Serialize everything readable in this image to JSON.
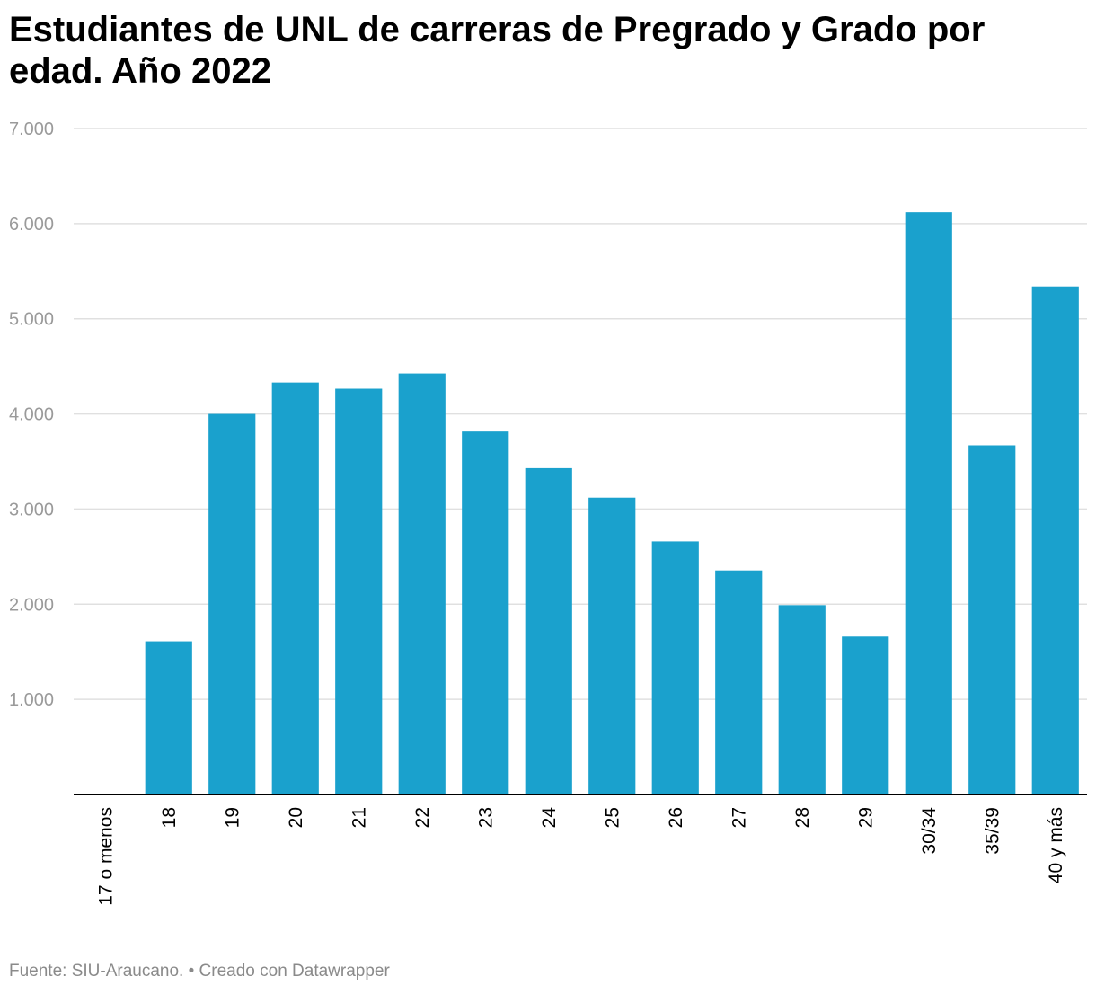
{
  "chart_data": {
    "type": "bar",
    "title": "Estudiantes de UNL de carreras de Pregrado y Grado por edad. Año 2022",
    "xlabel": "",
    "ylabel": "",
    "categories": [
      "17 o menos",
      "18",
      "19",
      "20",
      "21",
      "22",
      "23",
      "24",
      "25",
      "26",
      "27",
      "28",
      "29",
      "30/34",
      "35/39",
      "40 y más"
    ],
    "values": [
      0,
      1610,
      4000,
      4330,
      4265,
      4425,
      3815,
      3430,
      3120,
      2660,
      2355,
      1990,
      1660,
      6120,
      3670,
      5340
    ],
    "ylim": [
      0,
      7000
    ],
    "yticks": [
      1000,
      2000,
      3000,
      4000,
      5000,
      6000,
      7000
    ],
    "ytick_labels": [
      "1.000",
      "2.000",
      "3.000",
      "4.000",
      "5.000",
      "6.000",
      "7.000"
    ],
    "grid": true,
    "legend": "none",
    "colors": {
      "bar": "#1aa1cd",
      "grid": "#e0e0e0",
      "axis": "#000000",
      "tick_label": "#9a9a9a",
      "category_label": "#000000"
    }
  },
  "footer": {
    "source": "Fuente: SIU-Araucano. • Creado con Datawrapper"
  }
}
